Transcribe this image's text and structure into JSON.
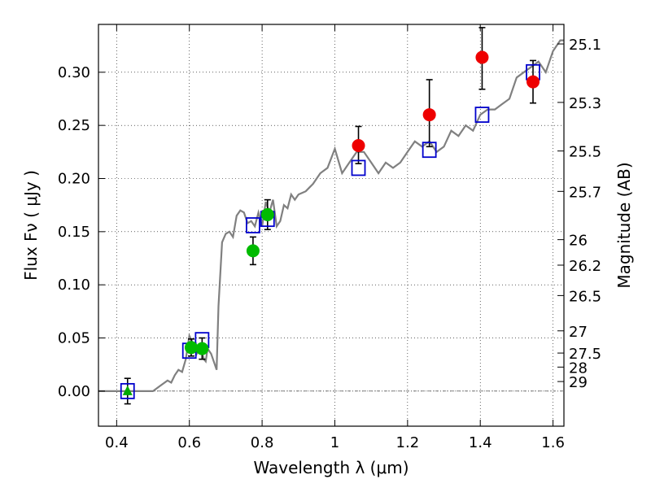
{
  "chart_data": {
    "type": "scatter",
    "xlabel": "Wavelength  λ (μm)",
    "ylabel": "Flux  Fν  ( μJy )",
    "ylabel_right": "Magnitude (AB)",
    "xlim": [
      0.35,
      1.63
    ],
    "ylim": [
      -0.033,
      0.345
    ],
    "grid": true,
    "x_ticks": [
      0.4,
      0.6,
      0.8,
      1.0,
      1.2,
      1.4,
      1.6
    ],
    "x_tick_labels": [
      "0.4",
      "0.6",
      "0.8",
      "1",
      "1.2",
      "1.4",
      "1.6"
    ],
    "y_ticks": [
      0.0,
      0.05,
      0.1,
      0.15,
      0.2,
      0.25,
      0.3
    ],
    "y_tick_labels": [
      "0.00",
      "0.05",
      "0.10",
      "0.15",
      "0.20",
      "0.25",
      "0.30"
    ],
    "mag_ticks": [
      {
        "label": "25.1",
        "flux": 0.3266
      },
      {
        "label": "25.3",
        "flux": 0.2716
      },
      {
        "label": "25.5",
        "flux": 0.2259
      },
      {
        "label": "25.7",
        "flux": 0.1879
      },
      {
        "label": "26",
        "flux": 0.1425
      },
      {
        "label": "26.2",
        "flux": 0.1185
      },
      {
        "label": "26.5",
        "flux": 0.0899
      },
      {
        "label": "27",
        "flux": 0.0567
      },
      {
        "label": "27.5",
        "flux": 0.0358
      },
      {
        "label": "28",
        "flux": 0.0226
      },
      {
        "label": "29",
        "flux": 0.009
      }
    ],
    "model_spectrum": {
      "color": "#808080",
      "x": [
        0.35,
        0.5,
        0.52,
        0.54,
        0.55,
        0.56,
        0.57,
        0.58,
        0.59,
        0.6,
        0.61,
        0.62,
        0.63,
        0.64,
        0.645,
        0.65,
        0.66,
        0.67,
        0.675,
        0.68,
        0.69,
        0.7,
        0.71,
        0.72,
        0.73,
        0.74,
        0.75,
        0.76,
        0.77,
        0.78,
        0.79,
        0.8,
        0.81,
        0.82,
        0.83,
        0.84,
        0.85,
        0.86,
        0.87,
        0.88,
        0.89,
        0.9,
        0.92,
        0.94,
        0.96,
        0.98,
        1.0,
        1.02,
        1.04,
        1.06,
        1.08,
        1.1,
        1.12,
        1.14,
        1.16,
        1.18,
        1.2,
        1.22,
        1.24,
        1.26,
        1.28,
        1.3,
        1.32,
        1.34,
        1.36,
        1.38,
        1.4,
        1.42,
        1.44,
        1.46,
        1.48,
        1.5,
        1.52,
        1.54,
        1.56,
        1.58,
        1.6,
        1.62,
        1.63
      ],
      "y": [
        0.0,
        0.0,
        0.005,
        0.01,
        0.008,
        0.015,
        0.02,
        0.018,
        0.03,
        0.052,
        0.045,
        0.035,
        0.042,
        0.03,
        0.028,
        0.04,
        0.035,
        0.025,
        0.02,
        0.08,
        0.14,
        0.148,
        0.15,
        0.145,
        0.165,
        0.17,
        0.168,
        0.158,
        0.16,
        0.155,
        0.168,
        0.155,
        0.178,
        0.168,
        0.18,
        0.155,
        0.16,
        0.175,
        0.172,
        0.185,
        0.18,
        0.185,
        0.188,
        0.195,
        0.205,
        0.21,
        0.228,
        0.205,
        0.215,
        0.225,
        0.225,
        0.215,
        0.205,
        0.215,
        0.21,
        0.215,
        0.225,
        0.235,
        0.23,
        0.235,
        0.225,
        0.23,
        0.245,
        0.24,
        0.25,
        0.245,
        0.26,
        0.265,
        0.265,
        0.27,
        0.275,
        0.295,
        0.3,
        0.305,
        0.31,
        0.3,
        0.32,
        0.33,
        0.33
      ]
    },
    "model_photometry": {
      "color": "#0000cc",
      "marker": "open-square",
      "points": [
        {
          "x": 0.43,
          "y": 0.0
        },
        {
          "x": 0.6,
          "y": 0.038
        },
        {
          "x": 0.635,
          "y": 0.048
        },
        {
          "x": 0.775,
          "y": 0.156
        },
        {
          "x": 0.815,
          "y": 0.162
        },
        {
          "x": 1.065,
          "y": 0.21
        },
        {
          "x": 1.26,
          "y": 0.227
        },
        {
          "x": 1.405,
          "y": 0.26
        },
        {
          "x": 1.545,
          "y": 0.3
        }
      ]
    },
    "observed_limit": {
      "color": "#00aa00",
      "marker": "triangle",
      "points": [
        {
          "x": 0.43,
          "y": 0.0,
          "err": 0.012
        }
      ]
    },
    "observed_optical": {
      "color": "#00bb00",
      "marker": "circle",
      "points": [
        {
          "x": 0.605,
          "y": 0.041,
          "err": 0.008
        },
        {
          "x": 0.635,
          "y": 0.04,
          "err": 0.01
        },
        {
          "x": 0.775,
          "y": 0.132,
          "err": 0.013
        },
        {
          "x": 0.815,
          "y": 0.166,
          "err": 0.014
        }
      ]
    },
    "observed_nir": {
      "color": "#ee0000",
      "marker": "circle",
      "points": [
        {
          "x": 1.065,
          "y": 0.231,
          "err_up": 0.018,
          "err_down": 0.017
        },
        {
          "x": 1.26,
          "y": 0.26,
          "err_up": 0.033,
          "err_down": 0.03
        },
        {
          "x": 1.405,
          "y": 0.314,
          "err_up": 0.028,
          "err_down": 0.03
        },
        {
          "x": 1.545,
          "y": 0.291,
          "err_up": 0.02,
          "err_down": 0.02
        }
      ]
    }
  }
}
